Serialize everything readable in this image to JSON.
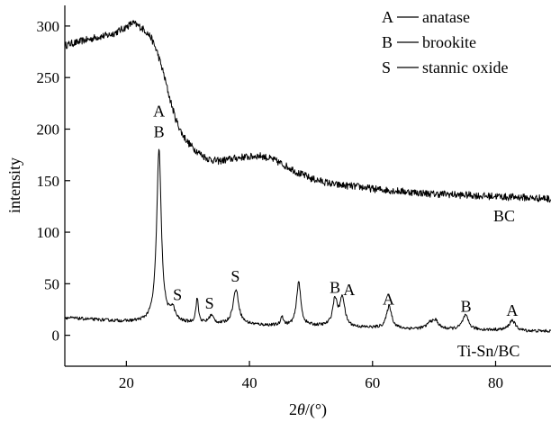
{
  "chart_data": {
    "type": "line",
    "title": "",
    "xlabel_prefix": "2",
    "xlabel_theta": "θ",
    "xlabel_suffix": "/(°)",
    "ylabel": "intensity",
    "xlim": [
      10,
      89
    ],
    "ylim": [
      -30,
      320
    ],
    "xticks": [
      20,
      40,
      60,
      80
    ],
    "yticks": [
      0,
      50,
      100,
      150,
      200,
      250,
      300
    ],
    "grid": false,
    "legend_position": "top-right",
    "legend": [
      {
        "key": "A",
        "label": "anatase"
      },
      {
        "key": "B",
        "label": "brookite"
      },
      {
        "key": "S",
        "label": "stannic oxide"
      }
    ],
    "series": [
      {
        "name": "BC",
        "label": "BC",
        "noise": 3.5,
        "keypoints": [
          [
            10,
            281
          ],
          [
            11,
            283
          ],
          [
            12,
            284
          ],
          [
            13,
            286
          ],
          [
            14,
            287
          ],
          [
            15,
            289
          ],
          [
            16,
            290
          ],
          [
            17,
            291
          ],
          [
            18,
            293
          ],
          [
            19,
            296
          ],
          [
            20,
            299
          ],
          [
            21,
            303
          ],
          [
            22,
            300
          ],
          [
            23,
            296
          ],
          [
            24,
            289
          ],
          [
            25,
            275
          ],
          [
            26,
            255
          ],
          [
            27,
            231
          ],
          [
            28,
            210
          ],
          [
            29,
            196
          ],
          [
            30,
            187
          ],
          [
            31,
            181
          ],
          [
            32,
            176
          ],
          [
            33,
            172
          ],
          [
            34,
            170
          ],
          [
            35,
            169
          ],
          [
            36,
            170
          ],
          [
            37,
            171
          ],
          [
            38,
            172
          ],
          [
            39,
            173
          ],
          [
            40,
            173
          ],
          [
            41,
            174
          ],
          [
            42,
            174
          ],
          [
            43,
            172
          ],
          [
            44,
            170
          ],
          [
            45,
            167
          ],
          [
            46,
            164
          ],
          [
            47,
            161
          ],
          [
            48,
            157
          ],
          [
            49,
            155
          ],
          [
            50,
            152
          ],
          [
            52,
            149
          ],
          [
            54,
            146
          ],
          [
            56,
            145
          ],
          [
            58,
            144
          ],
          [
            60,
            142
          ],
          [
            62,
            141
          ],
          [
            64,
            140
          ],
          [
            66,
            139
          ],
          [
            68,
            138
          ],
          [
            70,
            137
          ],
          [
            72,
            137
          ],
          [
            74,
            136
          ],
          [
            76,
            136
          ],
          [
            78,
            135
          ],
          [
            80,
            135
          ],
          [
            82,
            134
          ],
          [
            84,
            134
          ],
          [
            86,
            133
          ],
          [
            88,
            133
          ],
          [
            89,
            132
          ]
        ]
      },
      {
        "name": "Ti-Sn/BC",
        "label": "Ti-Sn/BC",
        "noise": 1.5,
        "baseline": [
          [
            10,
            17
          ],
          [
            15,
            15
          ],
          [
            20,
            13
          ],
          [
            25,
            12
          ],
          [
            30,
            11
          ],
          [
            35,
            10
          ],
          [
            40,
            10
          ],
          [
            45,
            9
          ],
          [
            50,
            9
          ],
          [
            55,
            8
          ],
          [
            60,
            7
          ],
          [
            65,
            6
          ],
          [
            70,
            6
          ],
          [
            75,
            5
          ],
          [
            80,
            5
          ],
          [
            85,
            4
          ],
          [
            89,
            4
          ]
        ],
        "peaks": [
          {
            "x": 25.3,
            "height": 168,
            "width": 0.45
          },
          {
            "x": 27.5,
            "height": 12,
            "width": 0.5
          },
          {
            "x": 31.5,
            "height": 24,
            "width": 0.25
          },
          {
            "x": 33.8,
            "height": 8,
            "width": 0.5
          },
          {
            "x": 37.8,
            "height": 34,
            "width": 0.55
          },
          {
            "x": 45.3,
            "height": 9,
            "width": 0.25
          },
          {
            "x": 48.0,
            "height": 43,
            "width": 0.4
          },
          {
            "x": 53.9,
            "height": 26,
            "width": 0.45
          },
          {
            "x": 55.1,
            "height": 28,
            "width": 0.45
          },
          {
            "x": 62.7,
            "height": 22,
            "width": 0.5
          },
          {
            "x": 69.4,
            "height": 6,
            "width": 0.6
          },
          {
            "x": 70.3,
            "height": 7,
            "width": 0.5
          },
          {
            "x": 75.1,
            "height": 14,
            "width": 0.6
          },
          {
            "x": 82.7,
            "height": 10,
            "width": 0.6
          }
        ]
      }
    ],
    "annotations": [
      {
        "text": "A",
        "x": 25.3,
        "y": 212
      },
      {
        "text": "B",
        "x": 25.3,
        "y": 192
      },
      {
        "text": "S",
        "x": 28.3,
        "y": 34
      },
      {
        "text": "S",
        "x": 33.5,
        "y": 26
      },
      {
        "text": "S",
        "x": 37.7,
        "y": 52
      },
      {
        "text": "B",
        "x": 53.9,
        "y": 41
      },
      {
        "text": "A",
        "x": 56.2,
        "y": 39
      },
      {
        "text": "A",
        "x": 62.6,
        "y": 30
      },
      {
        "text": "B",
        "x": 75.2,
        "y": 23
      },
      {
        "text": "A",
        "x": 82.7,
        "y": 19
      }
    ]
  }
}
